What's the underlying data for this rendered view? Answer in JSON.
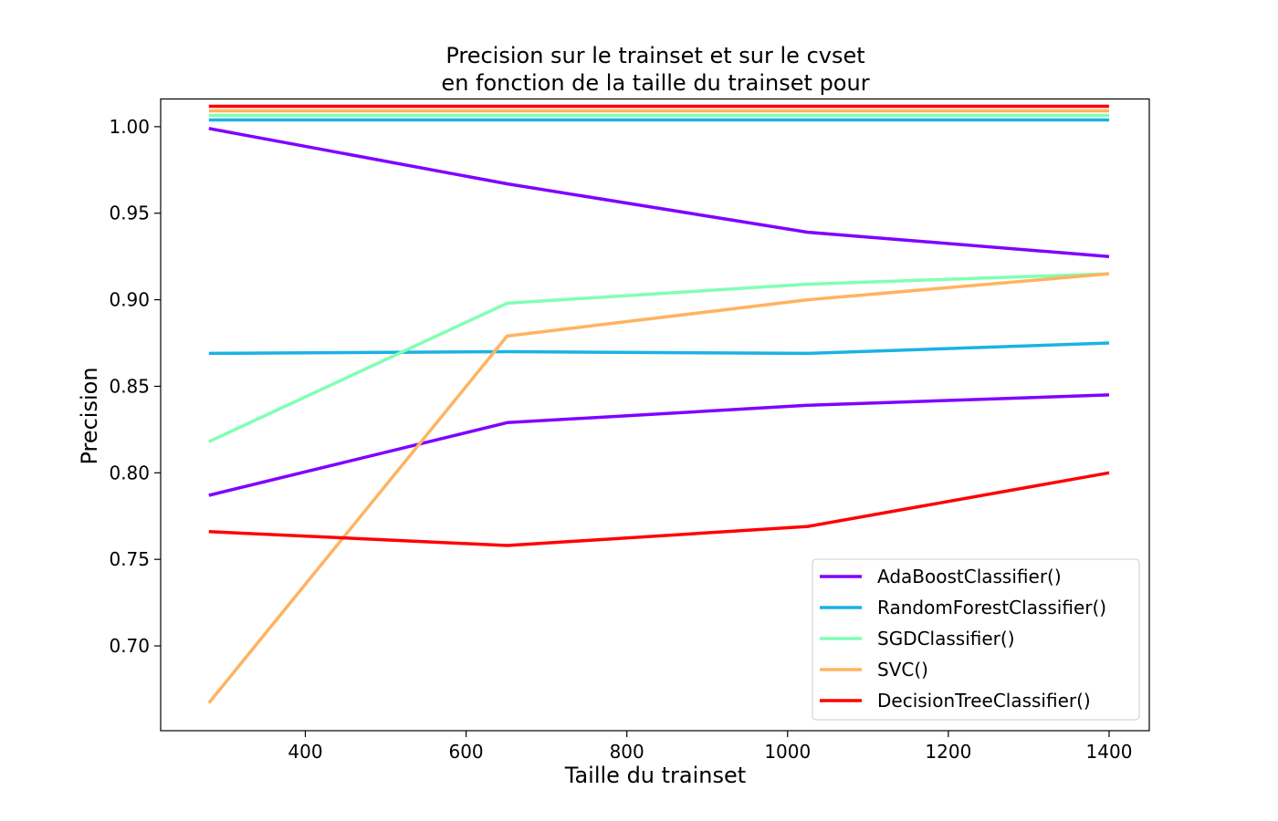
{
  "chart_data": {
    "type": "line",
    "title_lines": [
      "Precision sur le trainset et sur le cvset",
      "en fonction de la taille du trainset pour"
    ],
    "xlabel": "Taille du trainset",
    "ylabel": "Precision",
    "xlim": [
      220,
      1450
    ],
    "ylim": [
      0.651,
      1.016
    ],
    "x_ticks": [
      400,
      600,
      800,
      1000,
      1200,
      1400
    ],
    "y_ticks": [
      0.7,
      0.75,
      0.8,
      0.85,
      0.9,
      0.95,
      1.0
    ],
    "x_tick_labels": [
      "400",
      "600",
      "800",
      "1000",
      "1200",
      "1400"
    ],
    "y_tick_labels": [
      "0.70",
      "0.75",
      "0.80",
      "0.85",
      "0.90",
      "0.95",
      "1.00"
    ],
    "x": [
      280,
      651,
      1025,
      1400
    ],
    "grid": false,
    "legend_position": "lower right",
    "series": [
      {
        "name": "AdaBoostClassifier()",
        "color": "#8000ff",
        "train": [
          0.999,
          0.967,
          0.939,
          0.925
        ],
        "cv": [
          0.787,
          0.829,
          0.839,
          0.845
        ],
        "train_offset": 0
      },
      {
        "name": "RandomForestClassifier()",
        "color": "#1ab2e6",
        "train": [
          1.0,
          1.0,
          1.0,
          1.0
        ],
        "cv": [
          0.869,
          0.87,
          0.869,
          0.875
        ],
        "train_offset": 0
      },
      {
        "name": "SGDClassifier()",
        "color": "#80ffb4",
        "train": [
          0.818,
          0.898,
          0.909,
          0.915
        ],
        "cv": [],
        "train_offset": 0
      },
      {
        "name": "SVC()",
        "color": "#ffb360",
        "train": [
          0.667,
          0.879,
          0.9,
          0.915
        ],
        "cv": [],
        "train_offset": 0
      },
      {
        "name": "DecisionTreeClassifier()",
        "color": "#ff0000",
        "train": [
          1.0,
          1.0,
          1.0,
          1.0
        ],
        "cv": [
          0.766,
          0.758,
          0.769,
          0.8
        ],
        "train_offset": 0
      }
    ],
    "top_flat_lines": [
      {
        "color": "#1ab2e6",
        "value": 1.0
      },
      {
        "color": "#80ffb4",
        "value": 1.0
      },
      {
        "color": "#ffb360",
        "value": 1.0
      },
      {
        "color": "#ff0000",
        "value": 1.0
      }
    ]
  }
}
